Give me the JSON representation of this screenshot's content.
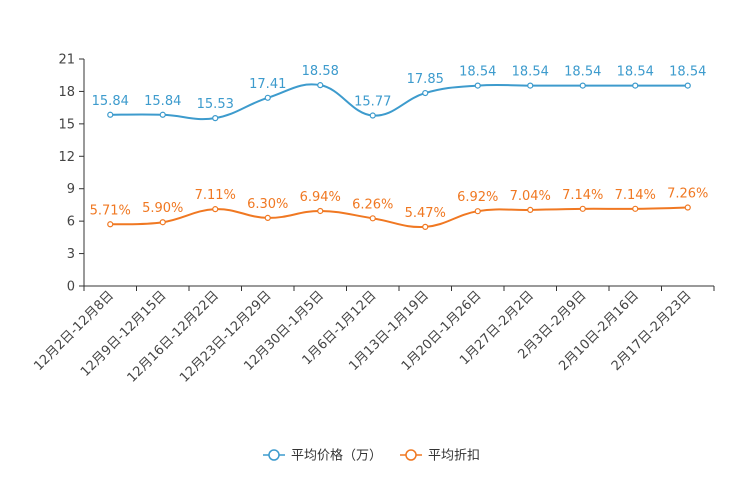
{
  "chart_data": {
    "type": "line",
    "title": "",
    "xlabel": "",
    "ylabel": "",
    "ylim": [
      0,
      21
    ],
    "yticks": [
      0,
      3,
      6,
      9,
      12,
      15,
      18,
      21
    ],
    "grid": false,
    "legend_position": "bottom-center",
    "categories": [
      "12月2日-12月8日",
      "12月9日-12月15日",
      "12月16日-12月22日",
      "12月23日-12月29日",
      "12月30日-1月5日",
      "1月6日-1月12日",
      "1月13日-1月19日",
      "1月20日-1月26日",
      "1月27日-2月2日",
      "2月3日-2月9日",
      "2月10日-2月16日",
      "2月17日-2月23日"
    ],
    "series": [
      {
        "name": "平均价格（万）",
        "color": "#3d9bcd",
        "values": [
          15.84,
          15.84,
          15.53,
          17.41,
          18.58,
          15.77,
          17.85,
          18.54,
          18.54,
          18.54,
          18.54,
          18.54
        ],
        "labels": [
          "15.84",
          "15.84",
          "15.53",
          "17.41",
          "18.58",
          "15.77",
          "17.85",
          "18.54",
          "18.54",
          "18.54",
          "18.54",
          "18.54"
        ]
      },
      {
        "name": "平均折扣",
        "color": "#f07822",
        "values": [
          5.71,
          5.9,
          7.11,
          6.3,
          6.94,
          6.26,
          5.47,
          6.92,
          7.04,
          7.14,
          7.14,
          7.26
        ],
        "labels": [
          "5.71%",
          "5.90%",
          "7.11%",
          "6.30%",
          "6.94%",
          "6.26%",
          "5.47%",
          "6.92%",
          "7.04%",
          "7.14%",
          "7.14%",
          "7.26%"
        ]
      }
    ]
  }
}
